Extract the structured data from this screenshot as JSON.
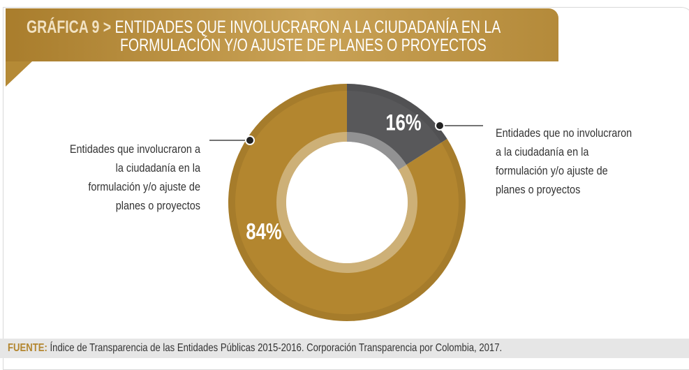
{
  "chart_data": {
    "type": "donut",
    "title_prefix": "GRÁFICA 9 >",
    "title_lines": [
      "ENTIDADES QUE INVOLUCRARON A LA CIUDADANÍA EN LA",
      "FORMULACIÓN Y/O AJUSTE DE PLANES O PROYECTOS"
    ],
    "categories": [
      "Entidades que involucraron a la ciudadanía en la formulación y/o ajuste de planes o proyectos",
      "Entidades que no involucraron a la ciudadanía en la formulación y/o ajuste de planes o proyectos"
    ],
    "values": [
      84,
      16
    ],
    "value_labels": [
      "84%",
      "16%"
    ],
    "colors": [
      "#b3862f",
      "#58585a"
    ],
    "source_label": "FUENTE:",
    "source": "Índice de Transparencia de las Entidades Públicas 2015-2016. Corporación Transparencia por Colombia, 2017."
  }
}
